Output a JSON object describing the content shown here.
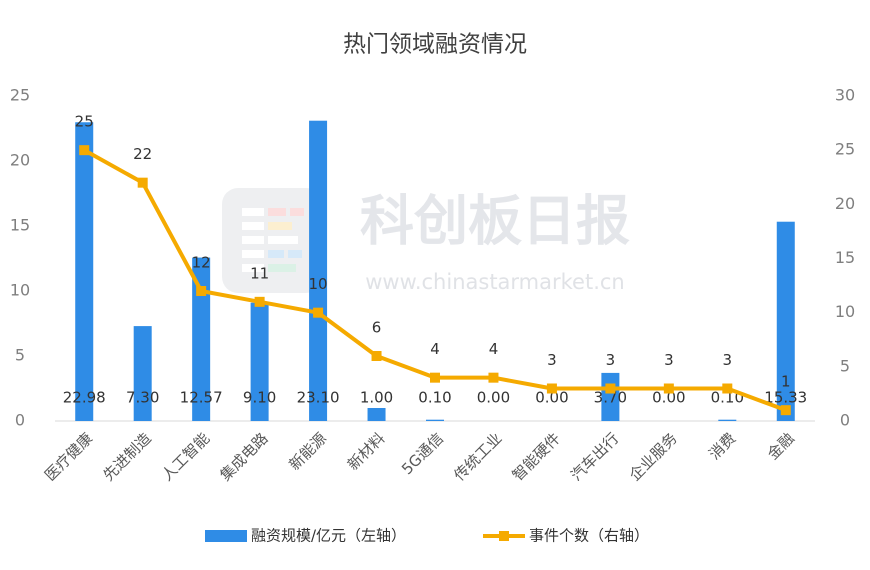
{
  "chart_data": {
    "type": "bar",
    "title": "热门领域融资情况",
    "watermark": {
      "name": "科创板日报",
      "url": "www.chinastarmarket.cn"
    },
    "categories": [
      "医疗健康",
      "先进制造",
      "人工智能",
      "集成电路",
      "新能源",
      "新材料",
      "5G通信",
      "传统工业",
      "智能硬件",
      "汽车出行",
      "企业服务",
      "消费",
      "金融"
    ],
    "series": [
      {
        "name": "融资规模/亿元（左轴）",
        "color": "#2f8ce6",
        "values": [
          22.98,
          7.3,
          12.57,
          9.1,
          23.1,
          1,
          0.1,
          0,
          0,
          3.7,
          0,
          0.1,
          15.33
        ],
        "value_labels": [
          "22.98",
          "7.30",
          "12.57",
          "9.10",
          "23.10",
          "1.00",
          "0.10",
          "0.00",
          "0.00",
          "3.70",
          "0.00",
          "0.10",
          "15.33"
        ]
      },
      {
        "name": "事件个数（右轴）",
        "color": "#f5aa00",
        "type": "line",
        "axis": "y2",
        "values": [
          25,
          22,
          12,
          11,
          10,
          6,
          4,
          4,
          3,
          3,
          3,
          3,
          1
        ]
      }
    ],
    "ylim": [
      0,
      25
    ],
    "yticks": [
      0,
      5,
      10,
      15,
      20,
      25
    ],
    "y2lim": [
      0,
      30
    ],
    "y2ticks": [
      0,
      5,
      10,
      15,
      20,
      25,
      30
    ]
  }
}
